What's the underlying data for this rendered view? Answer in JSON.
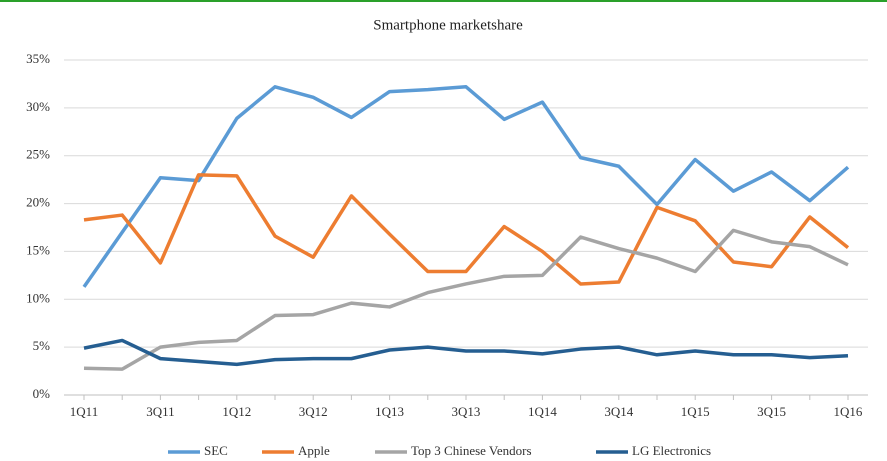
{
  "chart_data": {
    "type": "line",
    "title": "Smartphone marketshare",
    "categories": [
      "1Q11",
      null,
      "3Q11",
      null,
      "1Q12",
      null,
      "3Q12",
      null,
      "1Q13",
      null,
      "3Q13",
      null,
      "1Q14",
      null,
      "3Q14",
      null,
      "1Q15",
      null,
      "3Q15",
      null,
      "1Q16"
    ],
    "series": [
      {
        "name": "SEC",
        "color": "#5b9bd5",
        "values": [
          11.3,
          17.0,
          22.7,
          22.4,
          28.9,
          32.2,
          31.1,
          29.0,
          31.7,
          31.9,
          32.2,
          28.8,
          30.6,
          24.8,
          23.9,
          19.9,
          24.6,
          21.3,
          23.3,
          20.3,
          23.8
        ]
      },
      {
        "name": "Apple",
        "color": "#ed7d31",
        "values": [
          18.3,
          18.8,
          13.8,
          23.0,
          22.9,
          16.6,
          14.4,
          20.8,
          16.8,
          12.9,
          12.9,
          17.6,
          15.0,
          11.6,
          11.8,
          19.6,
          18.2,
          13.9,
          13.4,
          18.6,
          15.4
        ]
      },
      {
        "name": "Top 3 Chinese Vendors",
        "color": "#a5a5a5",
        "values": [
          2.8,
          2.7,
          5.0,
          5.5,
          5.7,
          8.3,
          8.4,
          9.6,
          9.2,
          10.7,
          11.6,
          12.4,
          12.5,
          16.5,
          15.3,
          14.3,
          12.9,
          17.2,
          16.0,
          15.5,
          13.6
        ]
      },
      {
        "name": "LG Electronics",
        "color": "#255e91",
        "values": [
          4.9,
          5.7,
          3.8,
          3.5,
          3.2,
          3.7,
          3.8,
          3.8,
          4.7,
          5.0,
          4.6,
          4.6,
          4.3,
          4.8,
          5.0,
          4.2,
          4.6,
          4.2,
          4.2,
          3.9,
          4.1
        ]
      }
    ],
    "ylim": [
      0,
      35
    ],
    "yticks": [
      {
        "value": 0,
        "label": "0%"
      },
      {
        "value": 5,
        "label": "5%"
      },
      {
        "value": 10,
        "label": "10%"
      },
      {
        "value": 15,
        "label": "15%"
      },
      {
        "value": 20,
        "label": "20%"
      },
      {
        "value": 25,
        "label": "25%"
      },
      {
        "value": 30,
        "label": "30%"
      },
      {
        "value": 35,
        "label": "35%"
      }
    ],
    "grid": true,
    "legend": "bottom"
  }
}
